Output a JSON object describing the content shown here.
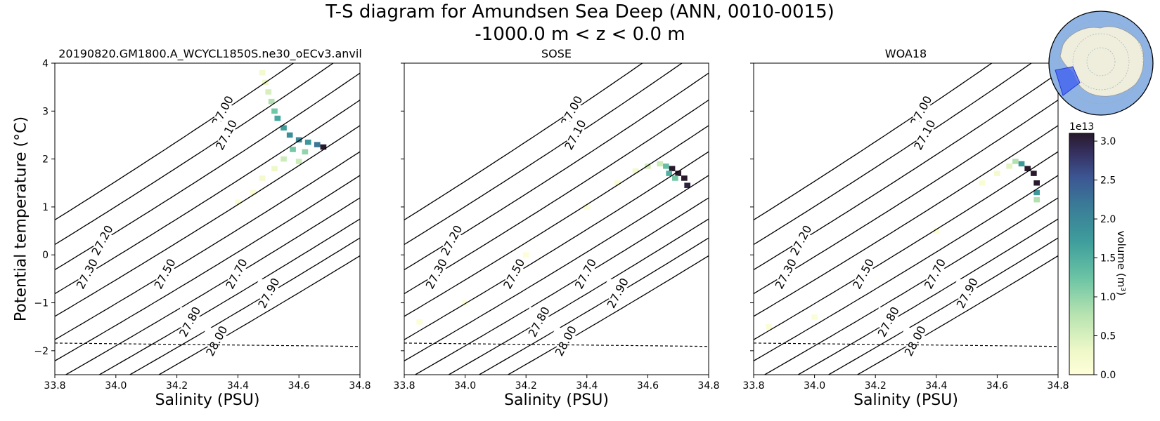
{
  "figure": {
    "title_line1": "T-S diagram for Amundsen Sea Deep (ANN, 0010-0015)",
    "title_line2": "-1000.0 m < z < 0.0 m",
    "ylabel": "Potential temperature (°C)",
    "xlabel": "Salinity (PSU)"
  },
  "colorbar": {
    "label": "volume (m³)",
    "exponent": "1e13",
    "ticks": [
      0.0,
      0.5,
      1.0,
      1.5,
      2.0,
      2.5,
      3.0
    ],
    "tick_labels": [
      "0.0",
      "0.5",
      "1.0",
      "1.5",
      "2.0",
      "2.5",
      "3.0"
    ],
    "colormap": "deep",
    "vmin": 0,
    "vmax": 3.1
  },
  "inset_map": {
    "description_icon": "antarctica-region-map-icon",
    "ocean_color": "#8fb4e3",
    "land_color": "#efeedd",
    "region_color": "#3b5ef0"
  },
  "chart_data": [
    {
      "type": "heatmap",
      "title": "20190820.GM1800.A_WCYCL1850S.ne30_oECv3.anvil",
      "xlabel": "Salinity (PSU)",
      "ylabel": "Potential temperature (°C)",
      "xlim": [
        33.8,
        34.8
      ],
      "ylim": [
        -2.5,
        4
      ],
      "xticks": [
        "33.8",
        "34.0",
        "34.2",
        "34.4",
        "34.6",
        "34.8"
      ],
      "yticks": [
        "−2",
        "−1",
        "0",
        "1",
        "2",
        "3",
        "4"
      ],
      "freezing_line": [
        [
          33.8,
          -1.84
        ],
        [
          34.8,
          -1.91
        ]
      ],
      "density_contours": [
        "27.00",
        "27.10",
        "27.20",
        "27.30",
        "27.40",
        "27.50",
        "27.60",
        "27.70",
        "27.80",
        "27.90",
        "28.00"
      ],
      "volume_cells": [
        [
          34.48,
          3.8,
          0.2
        ],
        [
          34.49,
          3.6,
          0.3
        ],
        [
          34.5,
          3.4,
          0.5
        ],
        [
          34.51,
          3.2,
          0.8
        ],
        [
          34.52,
          3.0,
          1.2
        ],
        [
          34.53,
          2.85,
          1.6
        ],
        [
          34.55,
          2.65,
          1.7
        ],
        [
          34.57,
          2.5,
          1.9
        ],
        [
          34.6,
          2.4,
          2.0
        ],
        [
          34.63,
          2.35,
          1.8
        ],
        [
          34.66,
          2.3,
          2.2
        ],
        [
          34.68,
          2.25,
          3.1
        ],
        [
          34.58,
          2.2,
          1.2
        ],
        [
          34.62,
          2.15,
          1.0
        ],
        [
          34.55,
          2.0,
          0.6
        ],
        [
          34.6,
          1.95,
          0.6
        ],
        [
          34.52,
          1.8,
          0.3
        ],
        [
          34.48,
          1.6,
          0.2
        ],
        [
          34.45,
          1.3,
          0.1
        ],
        [
          34.4,
          1.1,
          0.1
        ]
      ]
    },
    {
      "type": "heatmap",
      "title": "SOSE",
      "xlabel": "Salinity (PSU)",
      "xlim": [
        33.8,
        34.8
      ],
      "ylim": [
        -2.5,
        4
      ],
      "xticks": [
        "33.8",
        "34.0",
        "34.2",
        "34.4",
        "34.6",
        "34.8"
      ],
      "freezing_line": [
        [
          33.8,
          -1.84
        ],
        [
          34.8,
          -1.91
        ]
      ],
      "density_contours": [
        "27.00",
        "27.10",
        "27.20",
        "27.30",
        "27.40",
        "27.50",
        "27.60",
        "27.70",
        "27.80",
        "27.90",
        "28.00"
      ],
      "volume_cells": [
        [
          34.64,
          1.9,
          0.6
        ],
        [
          34.66,
          1.85,
          1.3
        ],
        [
          34.68,
          1.8,
          3.1
        ],
        [
          34.7,
          1.7,
          3.1
        ],
        [
          34.72,
          1.6,
          3.1
        ],
        [
          34.73,
          1.45,
          3.0
        ],
        [
          34.67,
          1.7,
          1.5
        ],
        [
          34.69,
          1.6,
          1.2
        ],
        [
          34.6,
          1.85,
          0.5
        ],
        [
          34.56,
          1.75,
          0.2
        ],
        [
          34.5,
          1.5,
          0.1
        ],
        [
          34.4,
          1.0,
          0.05
        ],
        [
          34.2,
          0.0,
          0.03
        ],
        [
          34.0,
          -1.0,
          0.03
        ],
        [
          33.85,
          -1.4,
          0.05
        ]
      ]
    },
    {
      "type": "heatmap",
      "title": "WOA18",
      "xlabel": "Salinity (PSU)",
      "xlim": [
        33.8,
        34.8
      ],
      "ylim": [
        -2.5,
        4
      ],
      "xticks": [
        "33.8",
        "34.0",
        "34.2",
        "34.4",
        "34.6",
        "34.8"
      ],
      "freezing_line": [
        [
          33.8,
          -1.84
        ],
        [
          34.8,
          -1.91
        ]
      ],
      "density_contours": [
        "27.00",
        "27.10",
        "27.20",
        "27.30",
        "27.40",
        "27.50",
        "27.60",
        "27.70",
        "27.80",
        "27.90",
        "28.00"
      ],
      "volume_cells": [
        [
          34.66,
          1.95,
          0.8
        ],
        [
          34.68,
          1.9,
          1.8
        ],
        [
          34.7,
          1.8,
          3.1
        ],
        [
          34.72,
          1.7,
          3.1
        ],
        [
          34.73,
          1.5,
          3.1
        ],
        [
          34.73,
          1.3,
          1.8
        ],
        [
          34.73,
          1.15,
          0.8
        ],
        [
          34.64,
          1.85,
          0.4
        ],
        [
          34.6,
          1.7,
          0.2
        ],
        [
          34.55,
          1.5,
          0.1
        ],
        [
          34.4,
          0.5,
          0.05
        ],
        [
          34.2,
          -0.5,
          0.05
        ],
        [
          34.0,
          -1.3,
          0.08
        ],
        [
          33.85,
          -1.5,
          0.1
        ]
      ]
    }
  ]
}
